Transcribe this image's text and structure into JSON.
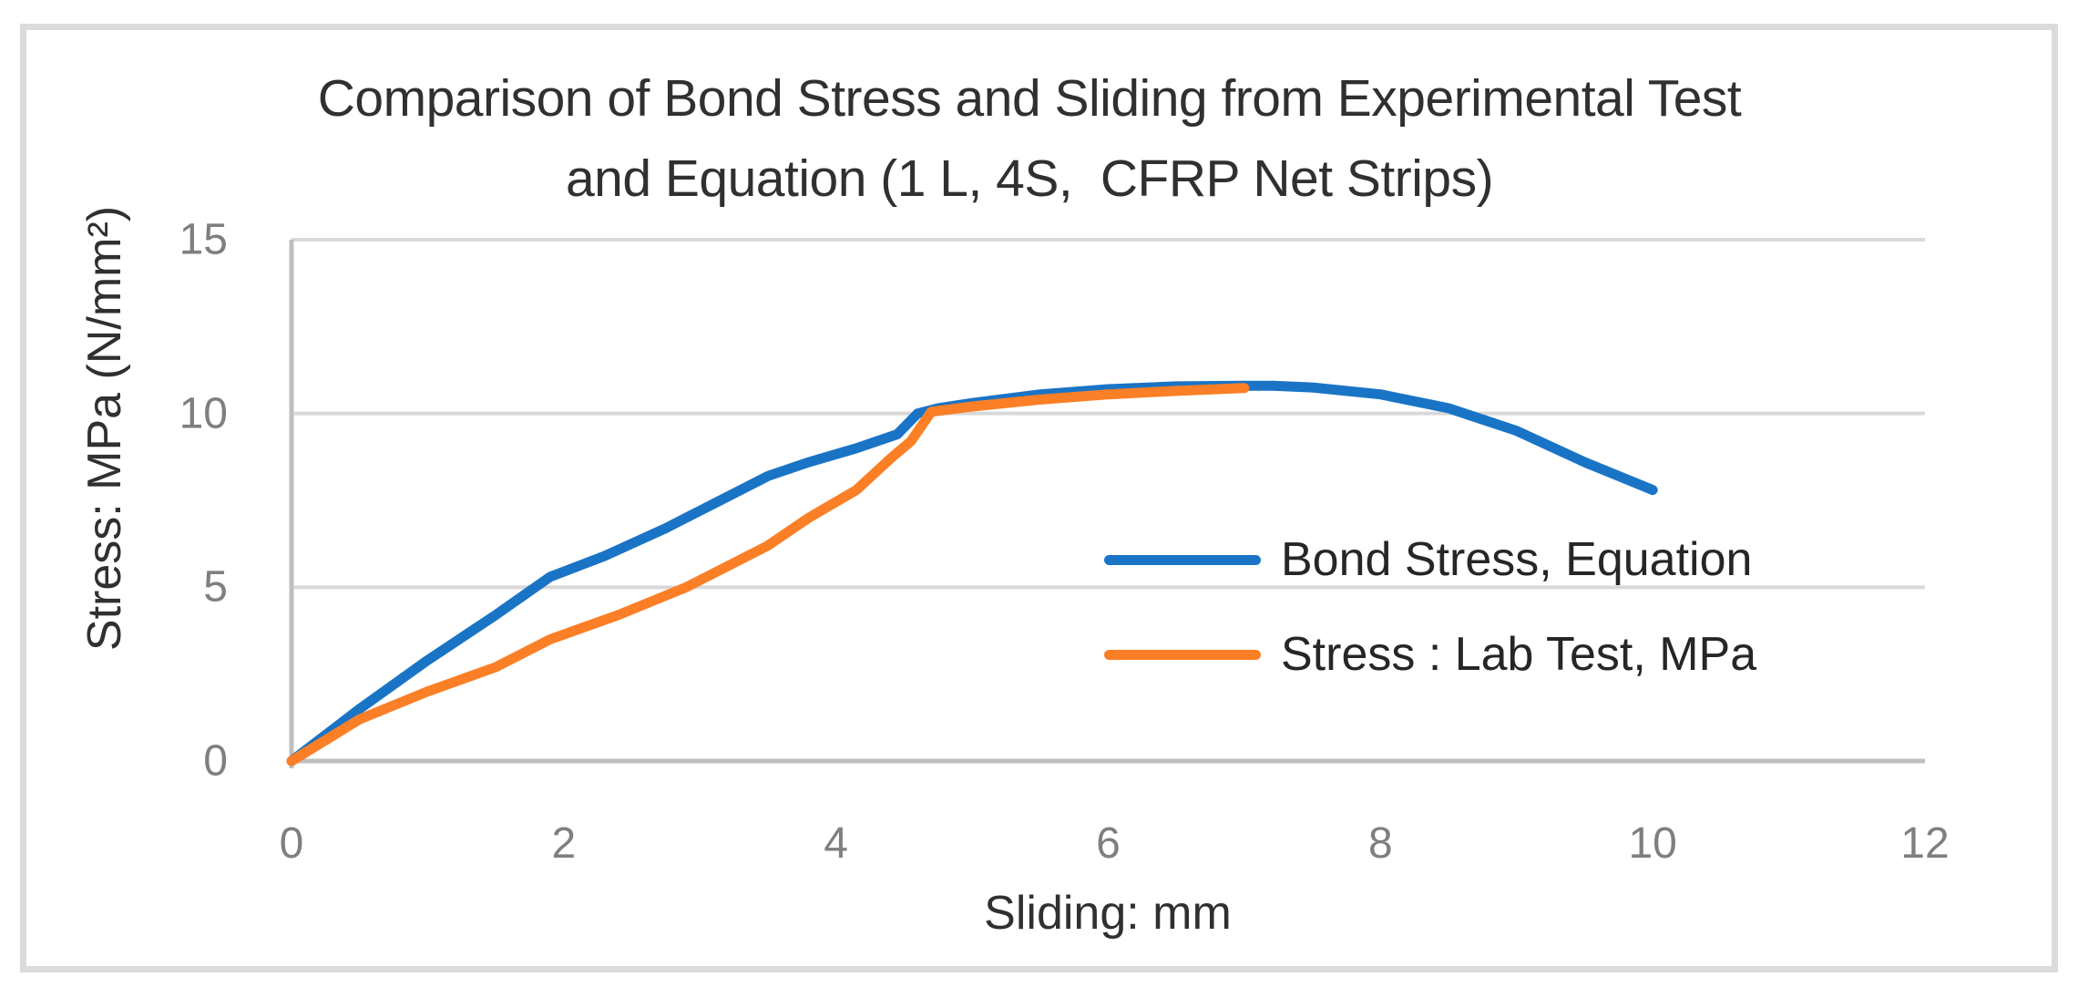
{
  "chart_data": {
    "type": "line",
    "title": "Comparison of Bond Stress and Sliding from Experimental Test\nand Equation (1 L, 4S,  CFRP Net Strips)",
    "xlabel": "Sliding: mm",
    "ylabel": "Stress: MPa (N/mm²)",
    "xlim": [
      0,
      12
    ],
    "ylim": [
      0,
      15
    ],
    "x_ticks": [
      0,
      2,
      4,
      6,
      8,
      10,
      12
    ],
    "y_ticks": [
      0,
      5,
      10,
      15
    ],
    "grid": true,
    "legend_position": "center-right-inside",
    "series": [
      {
        "name": "Bond Stress, Equation",
        "color": "#1a74c6",
        "x": [
          0,
          0.5,
          1.0,
          1.5,
          1.9,
          2.3,
          2.75,
          3.1,
          3.5,
          3.8,
          4.15,
          4.45,
          4.6,
          4.75,
          5.0,
          5.5,
          6.0,
          6.5,
          7.0,
          7.2,
          7.5,
          8.0,
          8.5,
          9.0,
          9.5,
          10.0
        ],
        "y": [
          0,
          1.5,
          2.9,
          4.2,
          5.3,
          5.9,
          6.7,
          7.4,
          8.2,
          8.6,
          9.0,
          9.4,
          10.0,
          10.15,
          10.3,
          10.55,
          10.7,
          10.78,
          10.8,
          10.8,
          10.75,
          10.55,
          10.15,
          9.5,
          8.6,
          7.8
        ]
      },
      {
        "name": "Stress : Lab Test, MPa",
        "color": "#fb7f26",
        "x": [
          0,
          0.5,
          1.0,
          1.5,
          1.9,
          2.4,
          2.9,
          3.2,
          3.5,
          3.8,
          4.15,
          4.4,
          4.55,
          4.7,
          5.0,
          5.5,
          6.0,
          6.5,
          7.0
        ],
        "y": [
          0,
          1.2,
          2.0,
          2.7,
          3.5,
          4.2,
          5.0,
          5.6,
          6.2,
          7.0,
          7.8,
          8.7,
          9.2,
          10.05,
          10.2,
          10.4,
          10.55,
          10.65,
          10.73
        ]
      }
    ],
    "style": {
      "gridline_color": "#d9d9d9",
      "axis_line_color": "#bfbfbf",
      "tick_label_color": "#7f7f7f",
      "text_color": "#303030",
      "frame_color": "#dbdbdb",
      "line_width": 11
    }
  }
}
